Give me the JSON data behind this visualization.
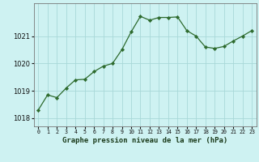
{
  "hours": [
    0,
    1,
    2,
    3,
    4,
    5,
    6,
    7,
    8,
    9,
    10,
    11,
    12,
    13,
    14,
    15,
    16,
    17,
    18,
    19,
    20,
    21,
    22,
    23
  ],
  "pressure": [
    1018.3,
    1018.85,
    1018.75,
    1019.1,
    1019.4,
    1019.42,
    1019.7,
    1019.9,
    1020.0,
    1020.5,
    1021.15,
    1021.72,
    1021.58,
    1021.68,
    1021.68,
    1021.7,
    1021.2,
    1021.0,
    1020.6,
    1020.55,
    1020.62,
    1020.82,
    1021.0,
    1021.2
  ],
  "line_color": "#2d6a2d",
  "marker_color": "#2d6a2d",
  "bg_color": "#cef2f2",
  "grid_color": "#a8d8d8",
  "title": "Graphe pression niveau de la mer (hPa)",
  "ylabel_ticks": [
    1018,
    1019,
    1020,
    1021
  ],
  "ylim": [
    1017.7,
    1022.2
  ],
  "xlim": [
    -0.5,
    23.5
  ]
}
